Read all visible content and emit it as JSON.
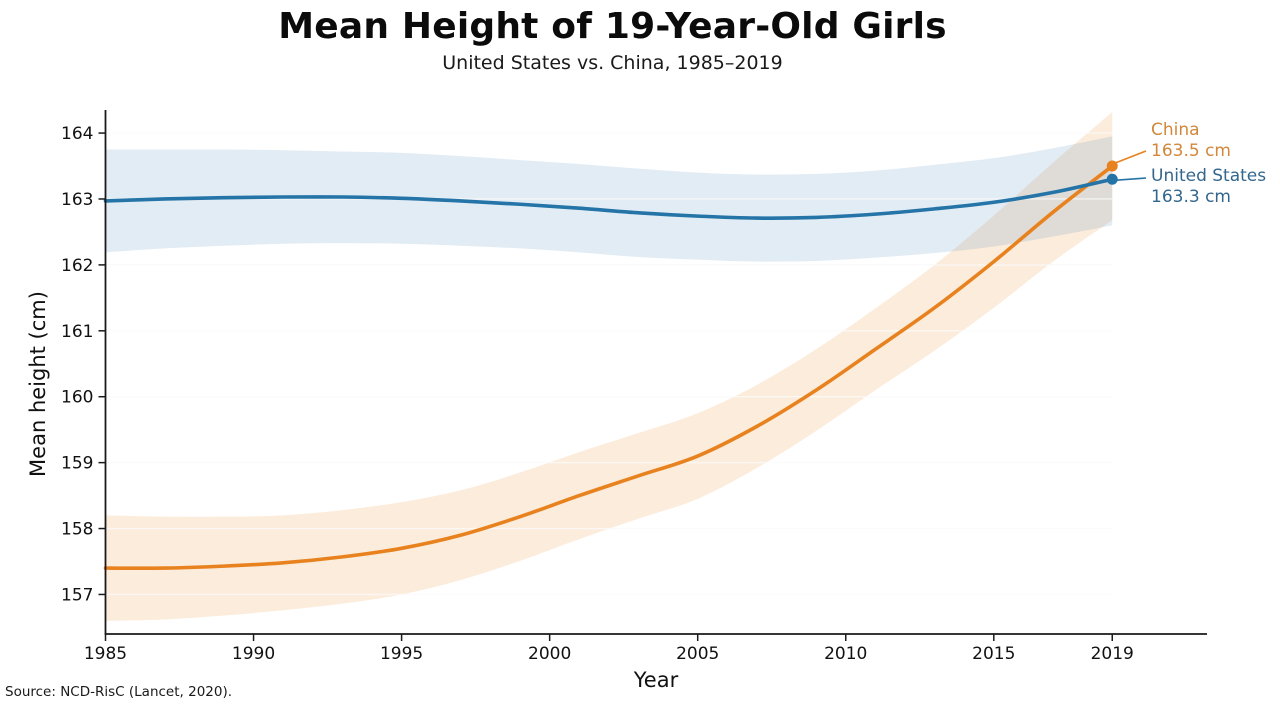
{
  "title": "Mean Height of 19-Year-Old Girls",
  "subtitle": "United States vs. China, 1985–2019",
  "source": "Source: NCD-RisC (Lancet, 2020).",
  "colors": {
    "axis": "#1a1a1a",
    "tick_text": "#111111",
    "grid_under": "#f0f0f0",
    "grid_over": "rgba(255,255,255,0.75)",
    "china_label_text": "#d2873b",
    "us_label_text": "#33668d"
  },
  "chart_data": {
    "type": "line",
    "title": "Mean Height of 19-Year-Old Girls",
    "subtitle": "United States vs. China, 1985–2019",
    "xlabel": "Year",
    "ylabel": "Mean height (cm)",
    "xlim": [
      1985,
      2022.2
    ],
    "ylim": [
      156.4,
      164.35
    ],
    "xticks": [
      1985,
      1990,
      1995,
      2000,
      2005,
      2010,
      2015,
      2019
    ],
    "yticks": [
      157,
      158,
      159,
      160,
      161,
      162,
      163,
      164
    ],
    "grid": "faint horizontal gridlines at each cm",
    "legend_position": "direct end labels at right edge",
    "x": [
      1985,
      1987,
      1989,
      1991,
      1993,
      1995,
      1997,
      1999,
      2001,
      2003,
      2005,
      2007,
      2009,
      2011,
      2013,
      2015,
      2017,
      2019
    ],
    "series": [
      {
        "name": "China",
        "end_label": "China",
        "end_value_label": "163.5 cm",
        "end_value": 163.5,
        "color": "#e8821e",
        "band_color": "rgba(238,144,50,0.17)",
        "values": [
          157.4,
          157.4,
          157.43,
          157.48,
          157.57,
          157.7,
          157.9,
          158.18,
          158.5,
          158.8,
          159.1,
          159.55,
          160.1,
          160.72,
          161.35,
          162.05,
          162.8,
          163.5
        ],
        "band_upper": [
          158.2,
          158.18,
          158.18,
          158.2,
          158.28,
          158.4,
          158.58,
          158.85,
          159.16,
          159.45,
          159.75,
          160.18,
          160.72,
          161.34,
          162.0,
          162.75,
          163.55,
          164.32
        ],
        "band_lower": [
          156.6,
          156.62,
          156.68,
          156.76,
          156.86,
          157.0,
          157.22,
          157.51,
          157.84,
          158.15,
          158.45,
          158.92,
          159.48,
          160.1,
          160.7,
          161.35,
          162.05,
          162.68
        ]
      },
      {
        "name": "United States",
        "end_label": "United States",
        "end_value_label": "163.3 cm",
        "end_value": 163.3,
        "color": "#2474a8",
        "band_color": "rgba(52,120,175,0.14)",
        "values": [
          162.97,
          163.0,
          163.02,
          163.03,
          163.03,
          163.01,
          162.97,
          162.92,
          162.86,
          162.79,
          162.74,
          162.71,
          162.72,
          162.77,
          162.85,
          162.95,
          163.1,
          163.3
        ],
        "band_upper": [
          163.75,
          163.75,
          163.75,
          163.74,
          163.72,
          163.7,
          163.65,
          163.59,
          163.53,
          163.46,
          163.4,
          163.37,
          163.38,
          163.43,
          163.52,
          163.62,
          163.77,
          163.95
        ],
        "band_lower": [
          162.19,
          162.25,
          162.29,
          162.32,
          162.33,
          162.32,
          162.29,
          162.25,
          162.19,
          162.12,
          162.08,
          162.05,
          162.06,
          162.11,
          162.18,
          162.28,
          162.43,
          162.6
        ]
      }
    ]
  }
}
